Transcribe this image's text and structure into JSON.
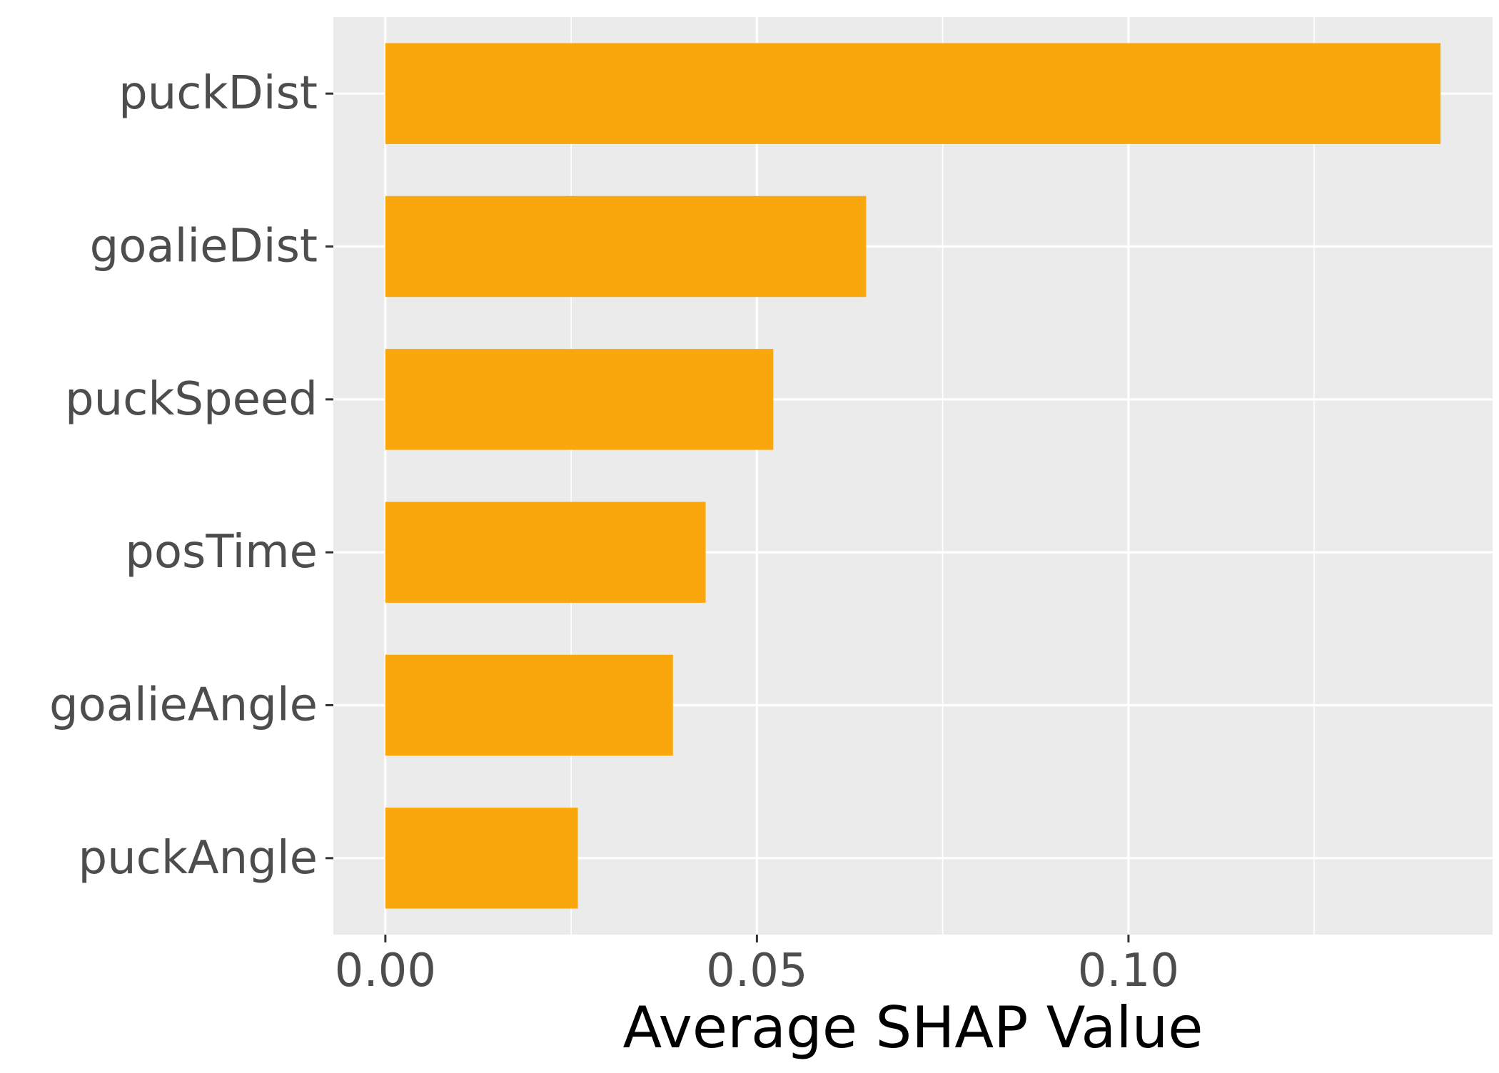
{
  "chart_data": {
    "type": "bar",
    "orientation": "horizontal",
    "categories": [
      "puckDist",
      "goalieDist",
      "puckSpeed",
      "posTime",
      "goalieAngle",
      "puckAngle"
    ],
    "values": [
      0.142,
      0.0647,
      0.0522,
      0.0431,
      0.0387,
      0.0259
    ],
    "xlabel": "Average SHAP Value",
    "ylabel": "",
    "title": "",
    "xlim": [
      -0.007,
      0.149
    ],
    "xticks": [
      0.0,
      0.05,
      0.1
    ],
    "xtick_labels": [
      "0.00",
      "0.05",
      "0.10"
    ],
    "grid": true,
    "colors": {
      "bar": "#FAA60D",
      "panel": "#EBEBEB",
      "grid": "#FFFFFF",
      "tick": "#4d4d4d"
    }
  }
}
